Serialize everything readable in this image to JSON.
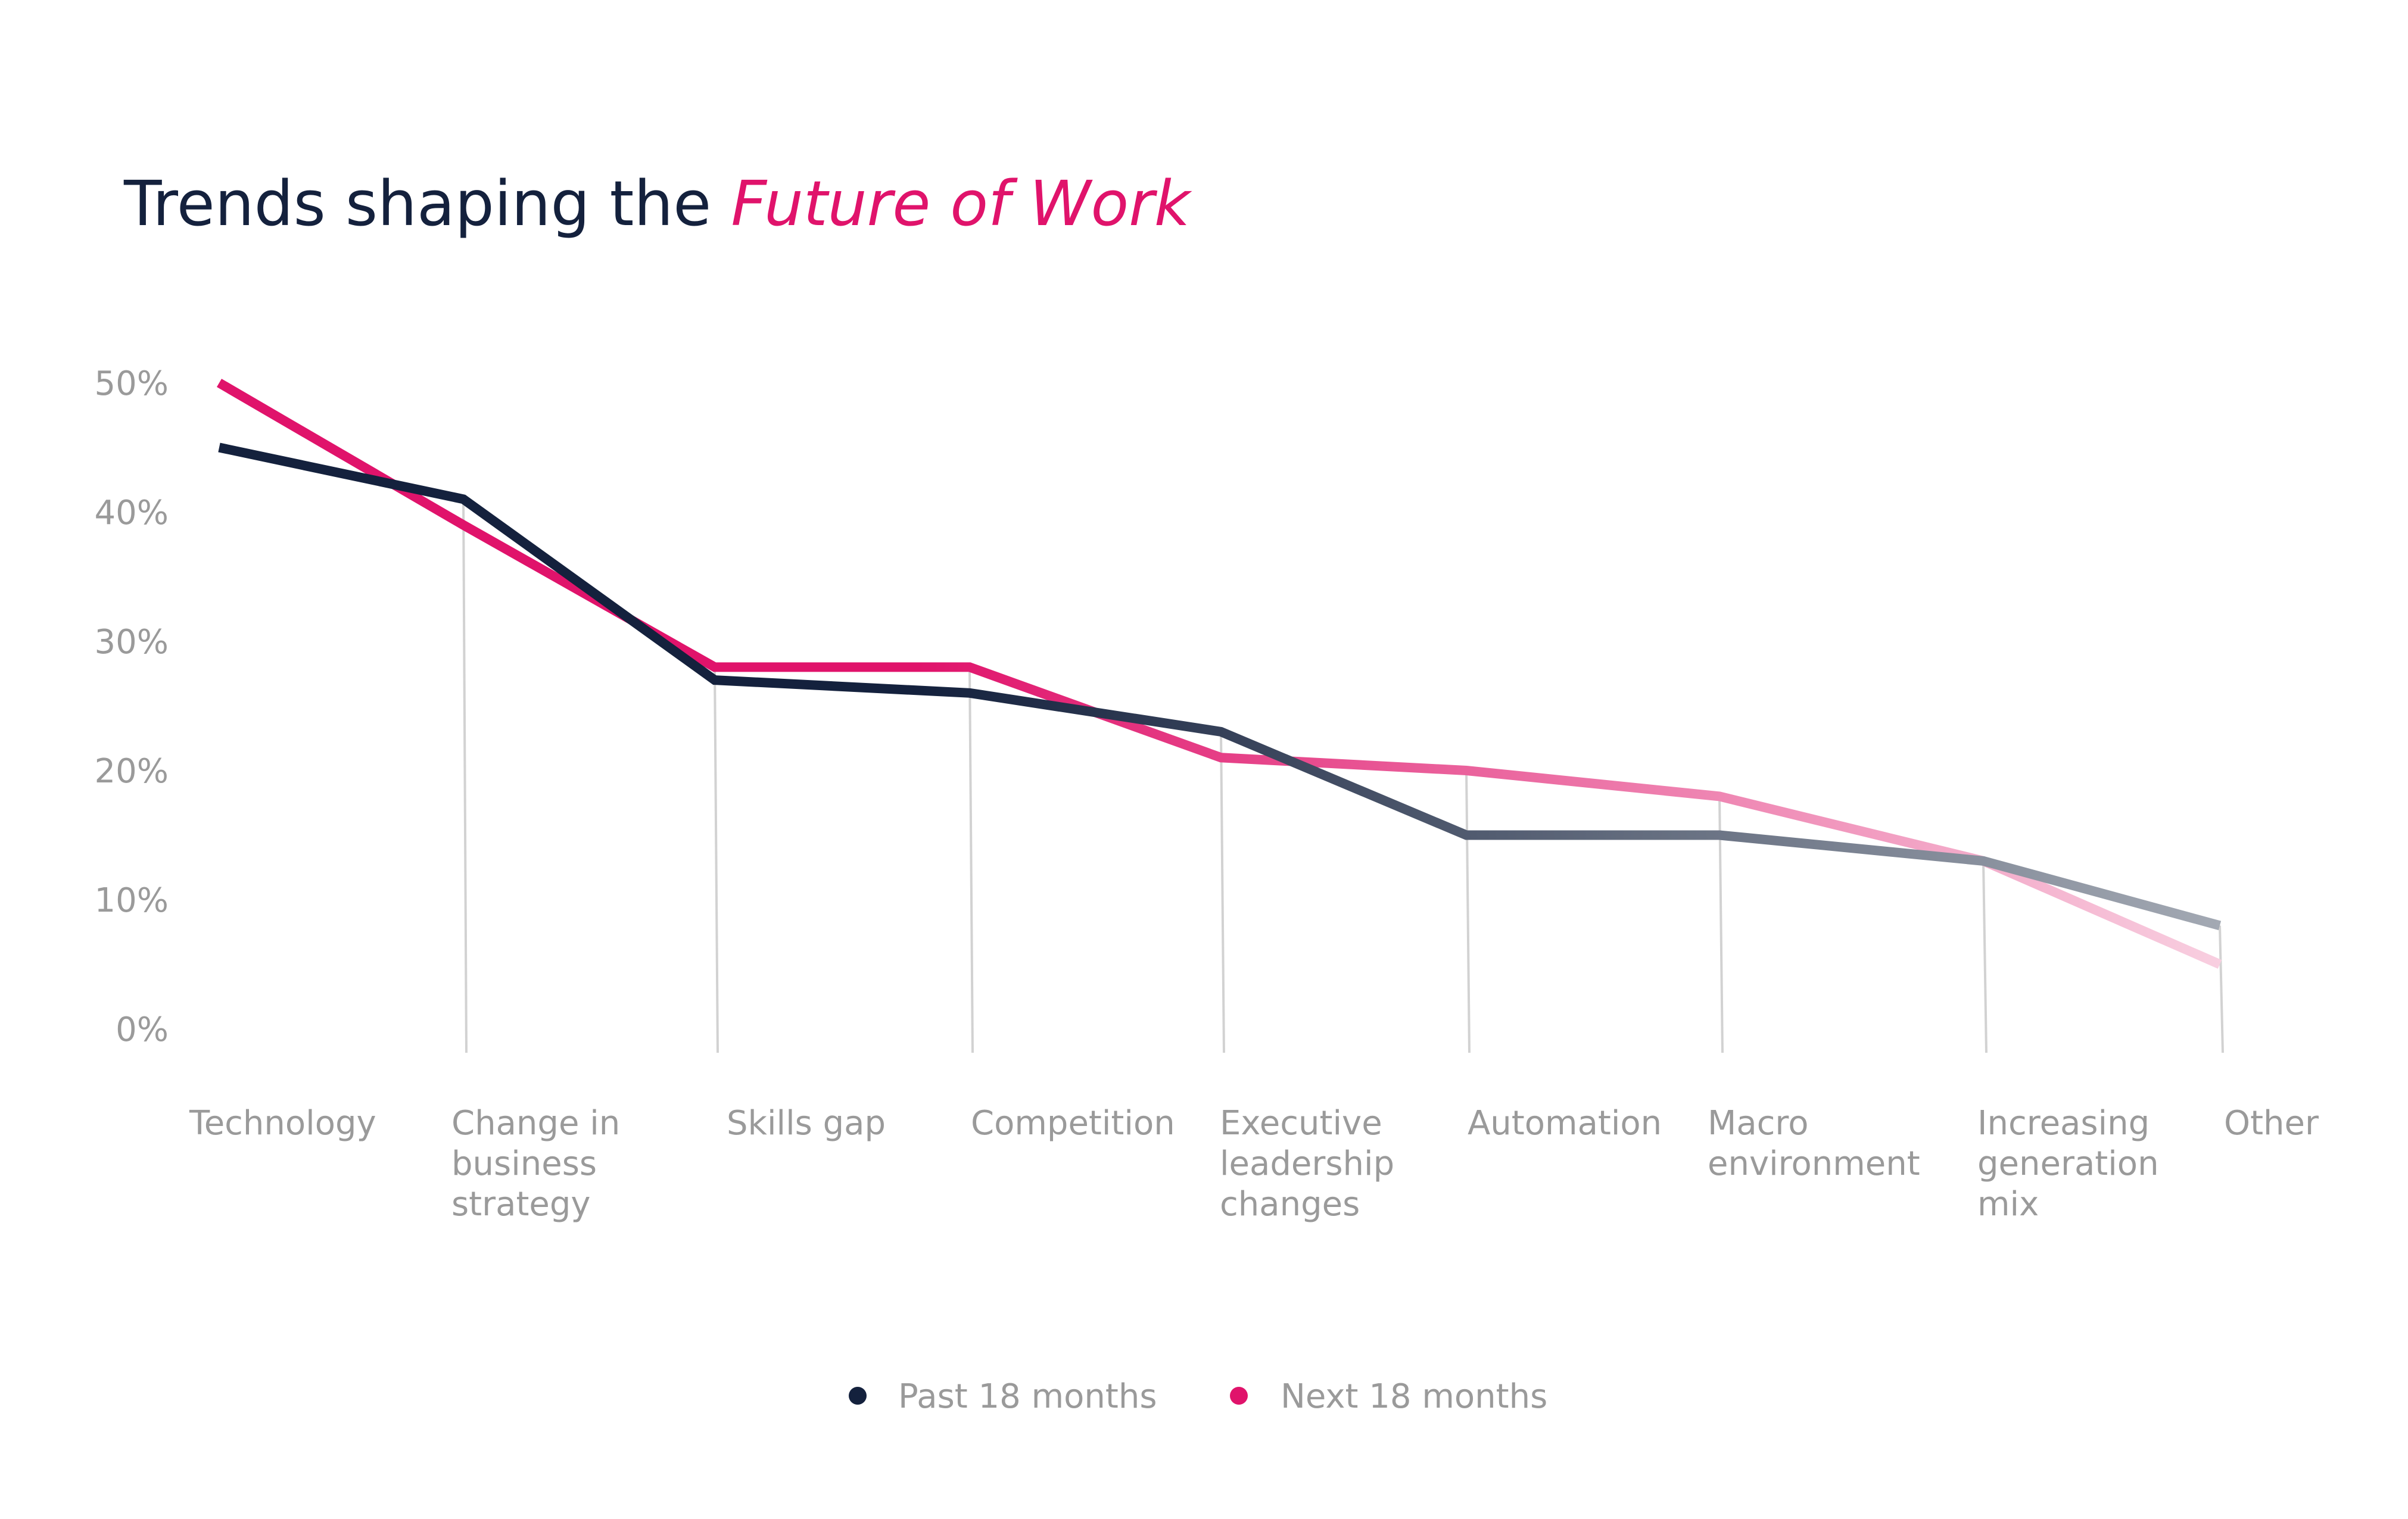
{
  "chart_data": {
    "type": "line",
    "title": {
      "plain": "Trends shaping the ",
      "accent": "Future of Work"
    },
    "categories": [
      [
        "Technology"
      ],
      [
        "Change in",
        "business",
        "strategy"
      ],
      [
        "Skills gap"
      ],
      [
        "Competition"
      ],
      [
        "Executive",
        "leadership",
        "changes"
      ],
      [
        "Automation"
      ],
      [
        "Macro",
        "environment"
      ],
      [
        "Increasing",
        "generation",
        "mix"
      ],
      [
        "Other"
      ]
    ],
    "y_ticks": [
      "0%",
      "10%",
      "20%",
      "30%",
      "40%",
      "50%"
    ],
    "ylim": [
      0,
      50
    ],
    "grid": "vertical drop lines at categories",
    "legend_position": "bottom-center",
    "series": [
      {
        "name": "Past 18 months",
        "color": "#14213d",
        "fade_to": "#a3a9b3",
        "values": [
          45,
          41,
          27,
          26,
          23,
          15,
          15,
          13,
          8
        ]
      },
      {
        "name": "Next 18 months",
        "color": "#e0136b",
        "fade_to": "#f8cfe0",
        "values": [
          50,
          39,
          28,
          28,
          21,
          20,
          18,
          13,
          5
        ]
      }
    ]
  }
}
